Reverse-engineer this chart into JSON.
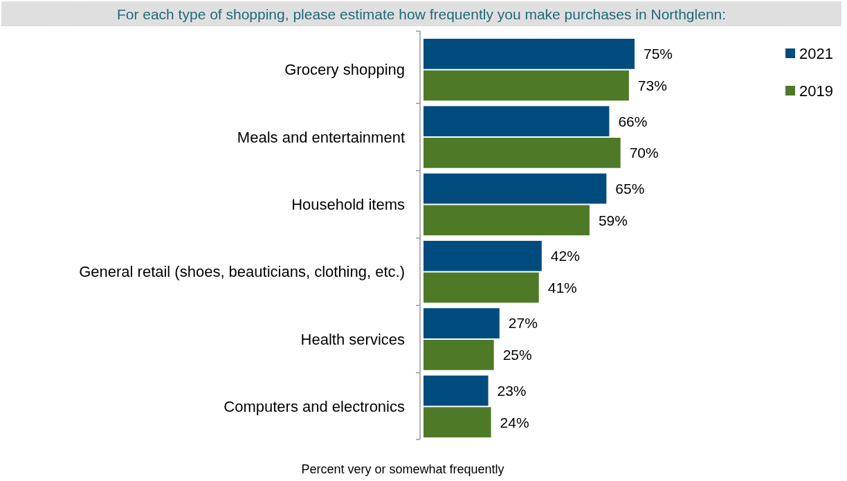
{
  "chart_data": {
    "type": "bar",
    "orientation": "horizontal",
    "title": "For each type of shopping, please estimate how frequently you make purchases in Northglenn:",
    "xlabel": "Percent very or somewhat frequently",
    "categories": [
      "Grocery shopping",
      "Meals and entertainment",
      "Household items",
      "General retail (shoes, beauticians, clothing, etc.)",
      "Health services",
      "Computers and electronics"
    ],
    "series": [
      {
        "name": "2021",
        "color": "#004c7f",
        "values": [
          75,
          66,
          65,
          42,
          27,
          23
        ],
        "value_labels": [
          "75%",
          "66%",
          "65%",
          "42%",
          "27%",
          "23%"
        ]
      },
      {
        "name": "2019",
        "color": "#4e7a28",
        "values": [
          73,
          70,
          59,
          41,
          25,
          24
        ],
        "value_labels": [
          "73%",
          "70%",
          "59%",
          "41%",
          "25%",
          "24%"
        ]
      }
    ],
    "legend": "top right"
  }
}
